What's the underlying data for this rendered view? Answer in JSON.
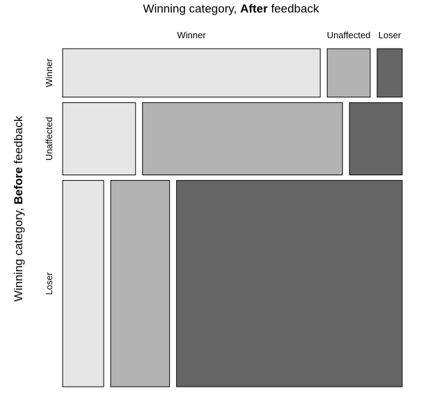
{
  "chart_data": {
    "type": "mosaic",
    "title": {
      "prefix": "Winning category, ",
      "bold": "After",
      "suffix": " feedback"
    },
    "ylabel": {
      "prefix": "Winning category, ",
      "bold": "Before",
      "suffix": " feedback"
    },
    "column_categories": [
      "Winner",
      "Unaffected",
      "Loser"
    ],
    "row_categories": [
      "Winner",
      "Unaffected",
      "Loser"
    ],
    "row_proportions": [
      0.148,
      0.221,
      0.631
    ],
    "cell_proportions": [
      [
        0.791,
        0.132,
        0.077
      ],
      [
        0.224,
        0.614,
        0.162
      ],
      [
        0.126,
        0.181,
        0.693
      ]
    ],
    "column_colors": [
      "#e6e6e6",
      "#b3b3b3",
      "#666666"
    ],
    "border_color": "#000000"
  }
}
